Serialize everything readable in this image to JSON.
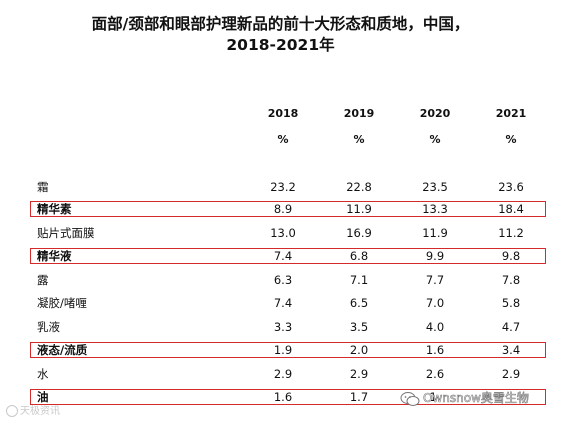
{
  "title": {
    "line1": "面部/颈部和眼部护理新品的前十大形态和质地，中国，",
    "line2": "2018-2021年"
  },
  "columns": [
    {
      "year": "2018",
      "unit": "%"
    },
    {
      "year": "2019",
      "unit": "%"
    },
    {
      "year": "2020",
      "unit": "%"
    },
    {
      "year": "2021",
      "unit": "%"
    }
  ],
  "rows": [
    {
      "label": "霜",
      "values": [
        "23.2",
        "22.8",
        "23.5",
        "23.6"
      ],
      "highlighted": false
    },
    {
      "label": "精华素",
      "values": [
        "8.9",
        "11.9",
        "13.3",
        "18.4"
      ],
      "highlighted": true
    },
    {
      "label": "贴片式面膜",
      "values": [
        "13.0",
        "16.9",
        "11.9",
        "11.2"
      ],
      "highlighted": false
    },
    {
      "label": "精华液",
      "values": [
        "7.4",
        "6.8",
        "9.9",
        "9.8"
      ],
      "highlighted": true
    },
    {
      "label": "露",
      "values": [
        "6.3",
        "7.1",
        "7.7",
        "7.8"
      ],
      "highlighted": false
    },
    {
      "label": "凝胶/啫喱",
      "values": [
        "7.4",
        "6.5",
        "7.0",
        "5.8"
      ],
      "highlighted": false
    },
    {
      "label": "乳液",
      "values": [
        "3.3",
        "3.5",
        "4.0",
        "4.7"
      ],
      "highlighted": false
    },
    {
      "label": "液态/流质",
      "values": [
        "1.9",
        "2.0",
        "1.6",
        "3.4"
      ],
      "highlighted": true
    },
    {
      "label": "水",
      "values": [
        "2.9",
        "2.9",
        "2.6",
        "2.9"
      ],
      "highlighted": false
    },
    {
      "label": "油",
      "values": [
        "1.6",
        "1.7",
        "1.",
        ""
      ],
      "highlighted": true
    }
  ],
  "watermarks": {
    "left": "天极资讯",
    "right": "Ownsnow奥雪生物",
    "icon": "wechat-icon"
  },
  "colors": {
    "highlight_border": "#d42a2a",
    "text": "#111111"
  }
}
